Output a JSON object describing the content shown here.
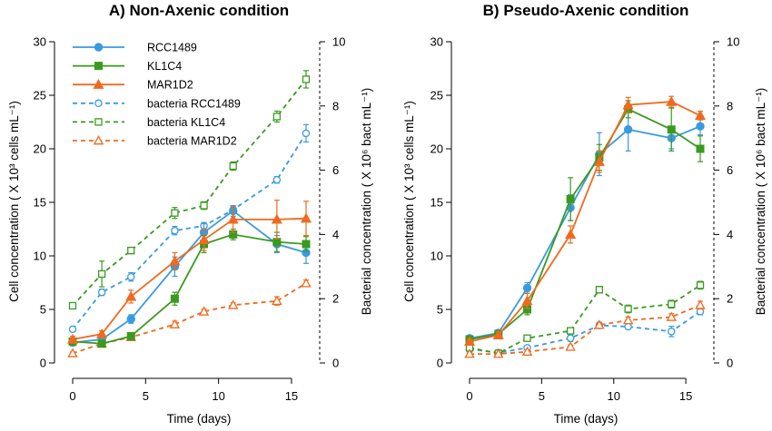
{
  "colors": {
    "RCC1489": "#3a9ae0",
    "KL1C4": "#3a9a1f",
    "MAR1D2": "#ef6a1e"
  },
  "legend": [
    {
      "label": "RCC1489",
      "series": "RCC1489",
      "dashed": false
    },
    {
      "label": "KL1C4",
      "series": "KL1C4",
      "dashed": false
    },
    {
      "label": "MAR1D2",
      "series": "MAR1D2",
      "dashed": false
    },
    {
      "label": "bacteria RCC1489",
      "series": "RCC1489",
      "dashed": true
    },
    {
      "label": "bacteria KL1C4",
      "series": "KL1C4",
      "dashed": true
    },
    {
      "label": "bacteria MAR1D2",
      "series": "MAR1D2",
      "dashed": true
    }
  ],
  "chart_data": [
    {
      "type": "line",
      "title": "A) Non-Axenic condition",
      "xlabel": "Time (days)",
      "ylabel": "Cell concentration ( X 10³ cells mL⁻¹)",
      "ylabel_right": "Bacterial concentration ( X 10⁶ bact mL⁻¹)",
      "xlim": [
        0,
        16
      ],
      "ylim": [
        0,
        30
      ],
      "ylim_right": [
        0,
        10
      ],
      "x_ticks": [
        "0",
        "5",
        "10",
        "15"
      ],
      "y_ticks": [
        "0",
        "5",
        "10",
        "15",
        "20",
        "25",
        "30"
      ],
      "y_ticks_right": [
        "0",
        "2",
        "4",
        "6",
        "8",
        "10"
      ],
      "grid": false,
      "legend_position": "top-left",
      "series": [
        {
          "name": "RCC1489",
          "axis": "left",
          "dashed": false,
          "marker": "circle",
          "x": [
            0,
            2,
            4,
            7,
            9,
            11,
            14,
            16
          ],
          "y": [
            1.9,
            2.2,
            4.1,
            9.0,
            12.2,
            14.2,
            11.1,
            10.3
          ],
          "err": [
            0.3,
            0.3,
            0.4,
            0.9,
            0.8,
            0.5,
            0.8,
            1.0
          ]
        },
        {
          "name": "KL1C4",
          "axis": "left",
          "dashed": false,
          "marker": "square",
          "x": [
            0,
            2,
            4,
            7,
            9,
            11,
            14,
            16
          ],
          "y": [
            2.0,
            1.8,
            2.5,
            6.0,
            11.1,
            12.0,
            11.3,
            11.1
          ],
          "err": [
            0.2,
            0.2,
            0.3,
            0.6,
            0.8,
            0.5,
            0.9,
            0.7
          ]
        },
        {
          "name": "MAR1D2",
          "axis": "left",
          "dashed": false,
          "marker": "triangle",
          "x": [
            0,
            2,
            4,
            7,
            9,
            11,
            14,
            16
          ],
          "y": [
            2.2,
            2.7,
            6.2,
            9.5,
            11.5,
            13.4,
            13.4,
            13.5
          ],
          "err": [
            0.3,
            0.3,
            0.6,
            0.8,
            1.0,
            1.2,
            1.8,
            1.6
          ]
        },
        {
          "name": "bacteria RCC1489",
          "axis": "right",
          "dashed": true,
          "marker": "circle",
          "x": [
            0,
            2,
            4,
            7,
            9,
            11,
            14,
            16
          ],
          "y": [
            1.05,
            2.2,
            2.68,
            4.12,
            4.27,
            4.77,
            5.7,
            7.15
          ],
          "err": [
            0.06,
            0.1,
            0.13,
            0.13,
            0.1,
            0.1,
            0.1,
            0.27
          ]
        },
        {
          "name": "bacteria KL1C4",
          "axis": "right",
          "dashed": true,
          "marker": "square",
          "x": [
            0,
            2,
            4,
            7,
            9,
            11,
            14,
            16
          ],
          "y": [
            1.78,
            2.77,
            3.5,
            4.67,
            4.9,
            6.13,
            7.67,
            8.83
          ],
          "err": [
            0.07,
            0.4,
            0.1,
            0.17,
            0.12,
            0.13,
            0.17,
            0.27
          ]
        },
        {
          "name": "bacteria MAR1D2",
          "axis": "right",
          "dashed": true,
          "marker": "triangle",
          "x": [
            0,
            2,
            4,
            7,
            9,
            11,
            14,
            16
          ],
          "y": [
            0.3,
            0.6,
            0.8,
            1.2,
            1.6,
            1.8,
            1.93,
            2.48
          ],
          "err": [
            0.04,
            0.05,
            0.06,
            0.1,
            0.07,
            0.07,
            0.13,
            0.1
          ]
        }
      ]
    },
    {
      "type": "line",
      "title": "B) Pseudo-Axenic condition",
      "xlabel": "Time (days)",
      "ylabel": "Cell concentration ( X 10³ cells mL⁻¹)",
      "ylabel_right": "Bacterial concentration ( X 10⁶ bact mL⁻¹)",
      "xlim": [
        0,
        16
      ],
      "ylim": [
        0,
        30
      ],
      "ylim_right": [
        0,
        10
      ],
      "x_ticks": [
        "0",
        "5",
        "10",
        "15"
      ],
      "y_ticks": [
        "0",
        "5",
        "10",
        "15",
        "20",
        "25",
        "30"
      ],
      "y_ticks_right": [
        "0",
        "2",
        "4",
        "6",
        "8",
        "10"
      ],
      "grid": false,
      "series": [
        {
          "name": "RCC1489",
          "axis": "left",
          "dashed": false,
          "marker": "circle",
          "x": [
            0,
            2,
            4,
            7,
            9,
            11,
            14,
            16
          ],
          "y": [
            2.3,
            2.8,
            7.0,
            14.5,
            19.5,
            21.8,
            21.0,
            22.1
          ],
          "err": [
            0.2,
            0.3,
            0.5,
            1.2,
            2.0,
            2.0,
            1.0,
            0.8
          ]
        },
        {
          "name": "KL1C4",
          "axis": "left",
          "dashed": false,
          "marker": "square",
          "x": [
            0,
            2,
            4,
            7,
            9,
            11,
            14,
            16
          ],
          "y": [
            2.2,
            2.7,
            5.0,
            15.3,
            19.2,
            23.7,
            21.8,
            20.0
          ],
          "err": [
            0.2,
            0.3,
            0.5,
            2.0,
            1.2,
            0.8,
            2.0,
            1.2
          ]
        },
        {
          "name": "MAR1D2",
          "axis": "left",
          "dashed": false,
          "marker": "triangle",
          "x": [
            0,
            2,
            4,
            7,
            9,
            11,
            14,
            16
          ],
          "y": [
            2.0,
            2.6,
            5.8,
            12.0,
            18.8,
            24.1,
            24.4,
            23.1
          ],
          "err": [
            0.2,
            0.3,
            0.7,
            0.8,
            1.0,
            0.7,
            0.5,
            0.4
          ]
        },
        {
          "name": "bacteria RCC1489",
          "axis": "right",
          "dashed": true,
          "marker": "circle",
          "x": [
            0,
            2,
            4,
            7,
            9,
            11,
            14,
            16
          ],
          "y": [
            0.43,
            0.32,
            0.47,
            0.77,
            1.17,
            1.13,
            0.98,
            1.6
          ],
          "err": [
            0.06,
            0.04,
            0.07,
            0.1,
            0.1,
            0.08,
            0.16,
            0.1
          ]
        },
        {
          "name": "bacteria KL1C4",
          "axis": "right",
          "dashed": true,
          "marker": "square",
          "x": [
            0,
            2,
            4,
            7,
            9,
            11,
            14,
            16
          ],
          "y": [
            0.47,
            0.3,
            0.77,
            1.0,
            2.28,
            1.68,
            1.83,
            2.42
          ],
          "err": [
            0.06,
            0.04,
            0.07,
            0.08,
            0.1,
            0.12,
            0.12,
            0.12
          ]
        },
        {
          "name": "bacteria MAR1D2",
          "axis": "right",
          "dashed": true,
          "marker": "triangle",
          "x": [
            0,
            2,
            4,
            7,
            9,
            11,
            14,
            16
          ],
          "y": [
            0.28,
            0.28,
            0.35,
            0.5,
            1.18,
            1.33,
            1.43,
            1.8
          ],
          "err": [
            0.04,
            0.04,
            0.05,
            0.06,
            0.08,
            0.1,
            0.1,
            0.12
          ]
        }
      ]
    }
  ]
}
